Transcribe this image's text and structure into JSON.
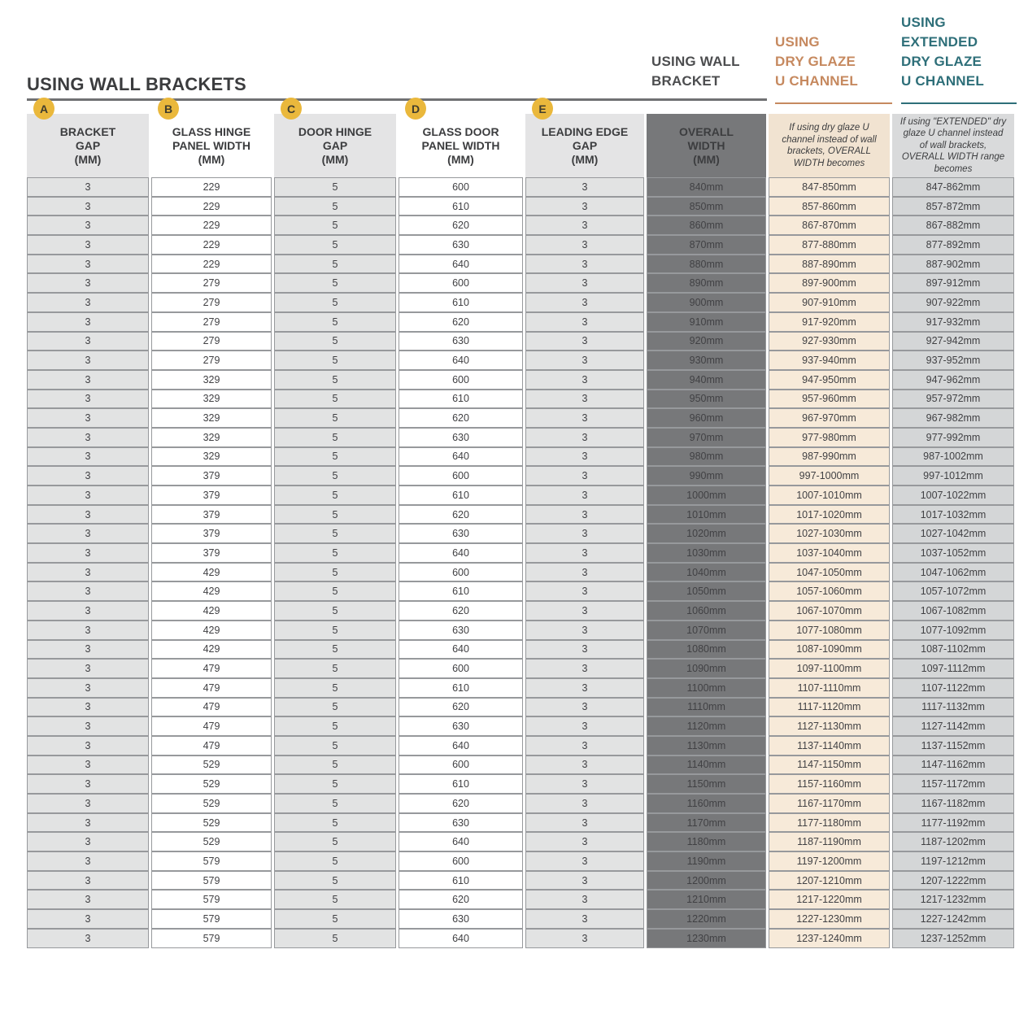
{
  "title": "USING WALL BRACKETS",
  "groups": {
    "wall_bracket": {
      "label": "USING WALL\nBRACKET",
      "color": "#4c4d4f"
    },
    "dry_glaze": {
      "label": "USING\nDRY GLAZE\nU CHANNEL",
      "color": "#c6895f"
    },
    "extended_dry_glaze": {
      "label": "USING\nEXTENDED\nDRY GLAZE\nU CHANNEL",
      "color": "#2e6f79"
    }
  },
  "colors": {
    "badge": "#eab83c",
    "dark_rule": "#707173",
    "overall_column": "#77787a",
    "dry_glaze_column": "#f7ead9",
    "extended_column": "#d4d6d7",
    "gray_column": "#e2e3e3"
  },
  "table": {
    "columns": [
      {
        "id": "bracket-gap",
        "badge": "A",
        "header": "BRACKET\nGAP\n(MM)"
      },
      {
        "id": "glass-hinge-panel-width",
        "badge": "B",
        "header": "GLASS HINGE\nPANEL WIDTH\n(MM)"
      },
      {
        "id": "door-hinge-gap",
        "badge": "C",
        "header": "DOOR HINGE\nGAP\n(MM)"
      },
      {
        "id": "glass-door-panel-width",
        "badge": "D",
        "header": "GLASS DOOR\nPANEL WIDTH\n(MM)"
      },
      {
        "id": "leading-edge-gap",
        "badge": "E",
        "header": "LEADING EDGE\nGAP\n(MM)"
      },
      {
        "id": "overall-width",
        "header": "OVERALL\nWIDTH\n(MM)"
      },
      {
        "id": "dry-glaze-width",
        "header": "If using dry glaze U channel instead of wall brackets, OVERALL WIDTH becomes"
      },
      {
        "id": "extended-dry-glaze-width",
        "header": "If using \"EXTENDED\" dry glaze U channel instead of wall brackets, OVERALL WIDTH range becomes"
      }
    ],
    "rows": [
      [
        "3",
        "229",
        "5",
        "600",
        "3",
        "840mm",
        "847-850mm",
        "847-862mm"
      ],
      [
        "3",
        "229",
        "5",
        "610",
        "3",
        "850mm",
        "857-860mm",
        "857-872mm"
      ],
      [
        "3",
        "229",
        "5",
        "620",
        "3",
        "860mm",
        "867-870mm",
        "867-882mm"
      ],
      [
        "3",
        "229",
        "5",
        "630",
        "3",
        "870mm",
        "877-880mm",
        "877-892mm"
      ],
      [
        "3",
        "229",
        "5",
        "640",
        "3",
        "880mm",
        "887-890mm",
        "887-902mm"
      ],
      [
        "3",
        "279",
        "5",
        "600",
        "3",
        "890mm",
        "897-900mm",
        "897-912mm"
      ],
      [
        "3",
        "279",
        "5",
        "610",
        "3",
        "900mm",
        "907-910mm",
        "907-922mm"
      ],
      [
        "3",
        "279",
        "5",
        "620",
        "3",
        "910mm",
        "917-920mm",
        "917-932mm"
      ],
      [
        "3",
        "279",
        "5",
        "630",
        "3",
        "920mm",
        "927-930mm",
        "927-942mm"
      ],
      [
        "3",
        "279",
        "5",
        "640",
        "3",
        "930mm",
        "937-940mm",
        "937-952mm"
      ],
      [
        "3",
        "329",
        "5",
        "600",
        "3",
        "940mm",
        "947-950mm",
        "947-962mm"
      ],
      [
        "3",
        "329",
        "5",
        "610",
        "3",
        "950mm",
        "957-960mm",
        "957-972mm"
      ],
      [
        "3",
        "329",
        "5",
        "620",
        "3",
        "960mm",
        "967-970mm",
        "967-982mm"
      ],
      [
        "3",
        "329",
        "5",
        "630",
        "3",
        "970mm",
        "977-980mm",
        "977-992mm"
      ],
      [
        "3",
        "329",
        "5",
        "640",
        "3",
        "980mm",
        "987-990mm",
        "987-1002mm"
      ],
      [
        "3",
        "379",
        "5",
        "600",
        "3",
        "990mm",
        "997-1000mm",
        "997-1012mm"
      ],
      [
        "3",
        "379",
        "5",
        "610",
        "3",
        "1000mm",
        "1007-1010mm",
        "1007-1022mm"
      ],
      [
        "3",
        "379",
        "5",
        "620",
        "3",
        "1010mm",
        "1017-1020mm",
        "1017-1032mm"
      ],
      [
        "3",
        "379",
        "5",
        "630",
        "3",
        "1020mm",
        "1027-1030mm",
        "1027-1042mm"
      ],
      [
        "3",
        "379",
        "5",
        "640",
        "3",
        "1030mm",
        "1037-1040mm",
        "1037-1052mm"
      ],
      [
        "3",
        "429",
        "5",
        "600",
        "3",
        "1040mm",
        "1047-1050mm",
        "1047-1062mm"
      ],
      [
        "3",
        "429",
        "5",
        "610",
        "3",
        "1050mm",
        "1057-1060mm",
        "1057-1072mm"
      ],
      [
        "3",
        "429",
        "5",
        "620",
        "3",
        "1060mm",
        "1067-1070mm",
        "1067-1082mm"
      ],
      [
        "3",
        "429",
        "5",
        "630",
        "3",
        "1070mm",
        "1077-1080mm",
        "1077-1092mm"
      ],
      [
        "3",
        "429",
        "5",
        "640",
        "3",
        "1080mm",
        "1087-1090mm",
        "1087-1102mm"
      ],
      [
        "3",
        "479",
        "5",
        "600",
        "3",
        "1090mm",
        "1097-1100mm",
        "1097-1112mm"
      ],
      [
        "3",
        "479",
        "5",
        "610",
        "3",
        "1100mm",
        "1107-1110mm",
        "1107-1122mm"
      ],
      [
        "3",
        "479",
        "5",
        "620",
        "3",
        "1110mm",
        "1117-1120mm",
        "1117-1132mm"
      ],
      [
        "3",
        "479",
        "5",
        "630",
        "3",
        "1120mm",
        "1127-1130mm",
        "1127-1142mm"
      ],
      [
        "3",
        "479",
        "5",
        "640",
        "3",
        "1130mm",
        "1137-1140mm",
        "1137-1152mm"
      ],
      [
        "3",
        "529",
        "5",
        "600",
        "3",
        "1140mm",
        "1147-1150mm",
        "1147-1162mm"
      ],
      [
        "3",
        "529",
        "5",
        "610",
        "3",
        "1150mm",
        "1157-1160mm",
        "1157-1172mm"
      ],
      [
        "3",
        "529",
        "5",
        "620",
        "3",
        "1160mm",
        "1167-1170mm",
        "1167-1182mm"
      ],
      [
        "3",
        "529",
        "5",
        "630",
        "3",
        "1170mm",
        "1177-1180mm",
        "1177-1192mm"
      ],
      [
        "3",
        "529",
        "5",
        "640",
        "3",
        "1180mm",
        "1187-1190mm",
        "1187-1202mm"
      ],
      [
        "3",
        "579",
        "5",
        "600",
        "3",
        "1190mm",
        "1197-1200mm",
        "1197-1212mm"
      ],
      [
        "3",
        "579",
        "5",
        "610",
        "3",
        "1200mm",
        "1207-1210mm",
        "1207-1222mm"
      ],
      [
        "3",
        "579",
        "5",
        "620",
        "3",
        "1210mm",
        "1217-1220mm",
        "1217-1232mm"
      ],
      [
        "3",
        "579",
        "5",
        "630",
        "3",
        "1220mm",
        "1227-1230mm",
        "1227-1242mm"
      ],
      [
        "3",
        "579",
        "5",
        "640",
        "3",
        "1230mm",
        "1237-1240mm",
        "1237-1252mm"
      ]
    ]
  }
}
